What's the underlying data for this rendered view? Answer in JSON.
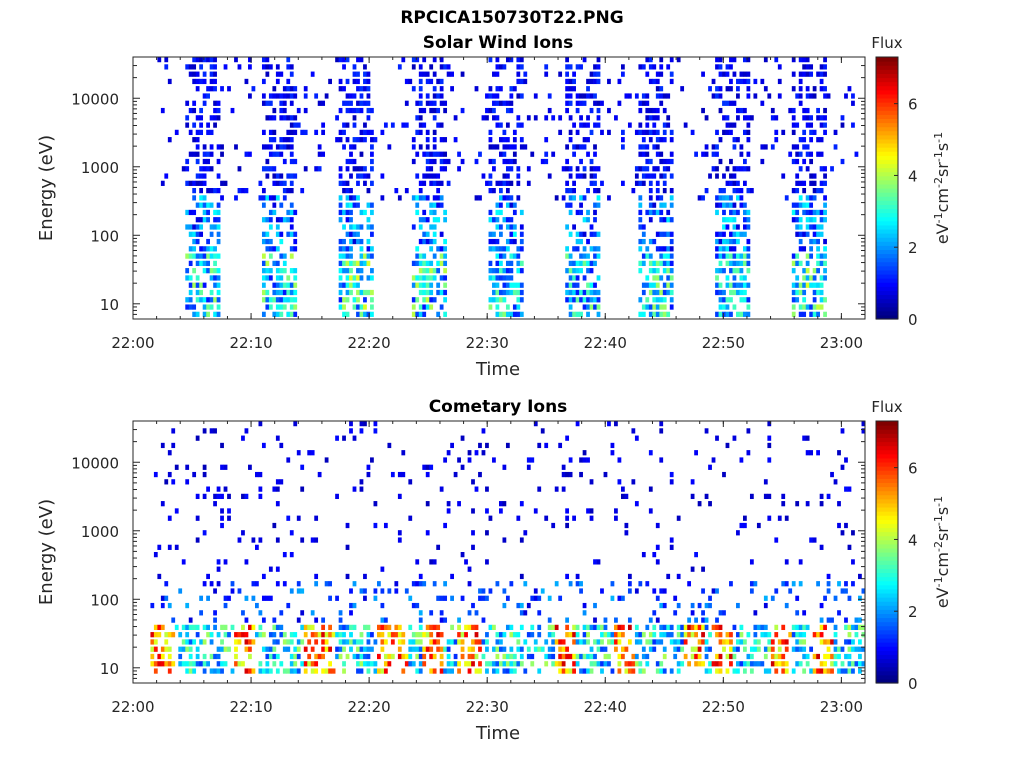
{
  "figure": {
    "title": "RPCICA150730T22.PNG"
  },
  "chart_data": [
    {
      "type": "heatmap",
      "title": "Solar Wind Ions",
      "xlabel": "Time",
      "ylabel": "Energy (eV)",
      "x_ticks": [
        "22:00",
        "22:10",
        "22:20",
        "22:30",
        "22:40",
        "22:50",
        "23:00"
      ],
      "x_range": [
        "22:00",
        "23:02"
      ],
      "y_scale": "log",
      "y_ticks": [
        "10",
        "100",
        "1000",
        "10000"
      ],
      "y_range": [
        6,
        40000
      ],
      "colorbar": {
        "title": "Flux",
        "label": "eV-1cm-2sr-1s-1",
        "ticks": [
          "0",
          "2",
          "4",
          "6"
        ],
        "range": [
          0,
          7.3
        ]
      },
      "bursts": [
        {
          "center_min": 6.0,
          "width_min": 3.0,
          "high_energy_max": 35000,
          "low_energy_min": 7,
          "peak_flux": 3.0
        },
        {
          "center_min": 12.4,
          "width_min": 3.0,
          "high_energy_max": 35000,
          "low_energy_min": 7,
          "peak_flux": 3.2
        },
        {
          "center_min": 18.8,
          "width_min": 3.0,
          "high_energy_max": 35000,
          "low_energy_min": 7,
          "peak_flux": 3.4
        },
        {
          "center_min": 25.2,
          "width_min": 3.0,
          "high_energy_max": 35000,
          "low_energy_min": 7,
          "peak_flux": 3.2
        },
        {
          "center_min": 31.6,
          "width_min": 3.0,
          "high_energy_max": 35000,
          "low_energy_min": 7,
          "peak_flux": 2.8
        },
        {
          "center_min": 38.0,
          "width_min": 3.0,
          "high_energy_max": 35000,
          "low_energy_min": 7,
          "peak_flux": 2.8
        },
        {
          "center_min": 44.4,
          "width_min": 3.0,
          "high_energy_max": 35000,
          "low_energy_min": 7,
          "peak_flux": 2.9
        },
        {
          "center_min": 50.8,
          "width_min": 3.0,
          "high_energy_max": 35000,
          "low_energy_min": 7,
          "peak_flux": 2.6
        },
        {
          "center_min": 57.2,
          "width_min": 3.0,
          "high_energy_max": 35000,
          "low_energy_min": 7,
          "peak_flux": 3.4
        }
      ]
    },
    {
      "type": "heatmap",
      "title": "Cometary Ions",
      "xlabel": "Time",
      "ylabel": "Energy (eV)",
      "x_ticks": [
        "22:00",
        "22:10",
        "22:20",
        "22:30",
        "22:40",
        "22:50",
        "23:00"
      ],
      "x_range": [
        "22:00",
        "23:02"
      ],
      "y_scale": "log",
      "y_ticks": [
        "10",
        "100",
        "1000",
        "10000"
      ],
      "y_range": [
        6,
        40000
      ],
      "colorbar": {
        "title": "Flux",
        "label": "eV-1cm-2sr-1s-1",
        "ticks": [
          "0",
          "2",
          "4",
          "6"
        ],
        "range": [
          0,
          7.3
        ]
      },
      "band": {
        "energy_min": 7,
        "energy_max": 45,
        "peak_flux": 6.8
      },
      "hot_spots_min": [
        2.5,
        9.5,
        15.5,
        16.3,
        21.5,
        22.5,
        25.5,
        28.5,
        36.5,
        41.5,
        47.5,
        50.0,
        55.0,
        58.5
      ]
    }
  ]
}
